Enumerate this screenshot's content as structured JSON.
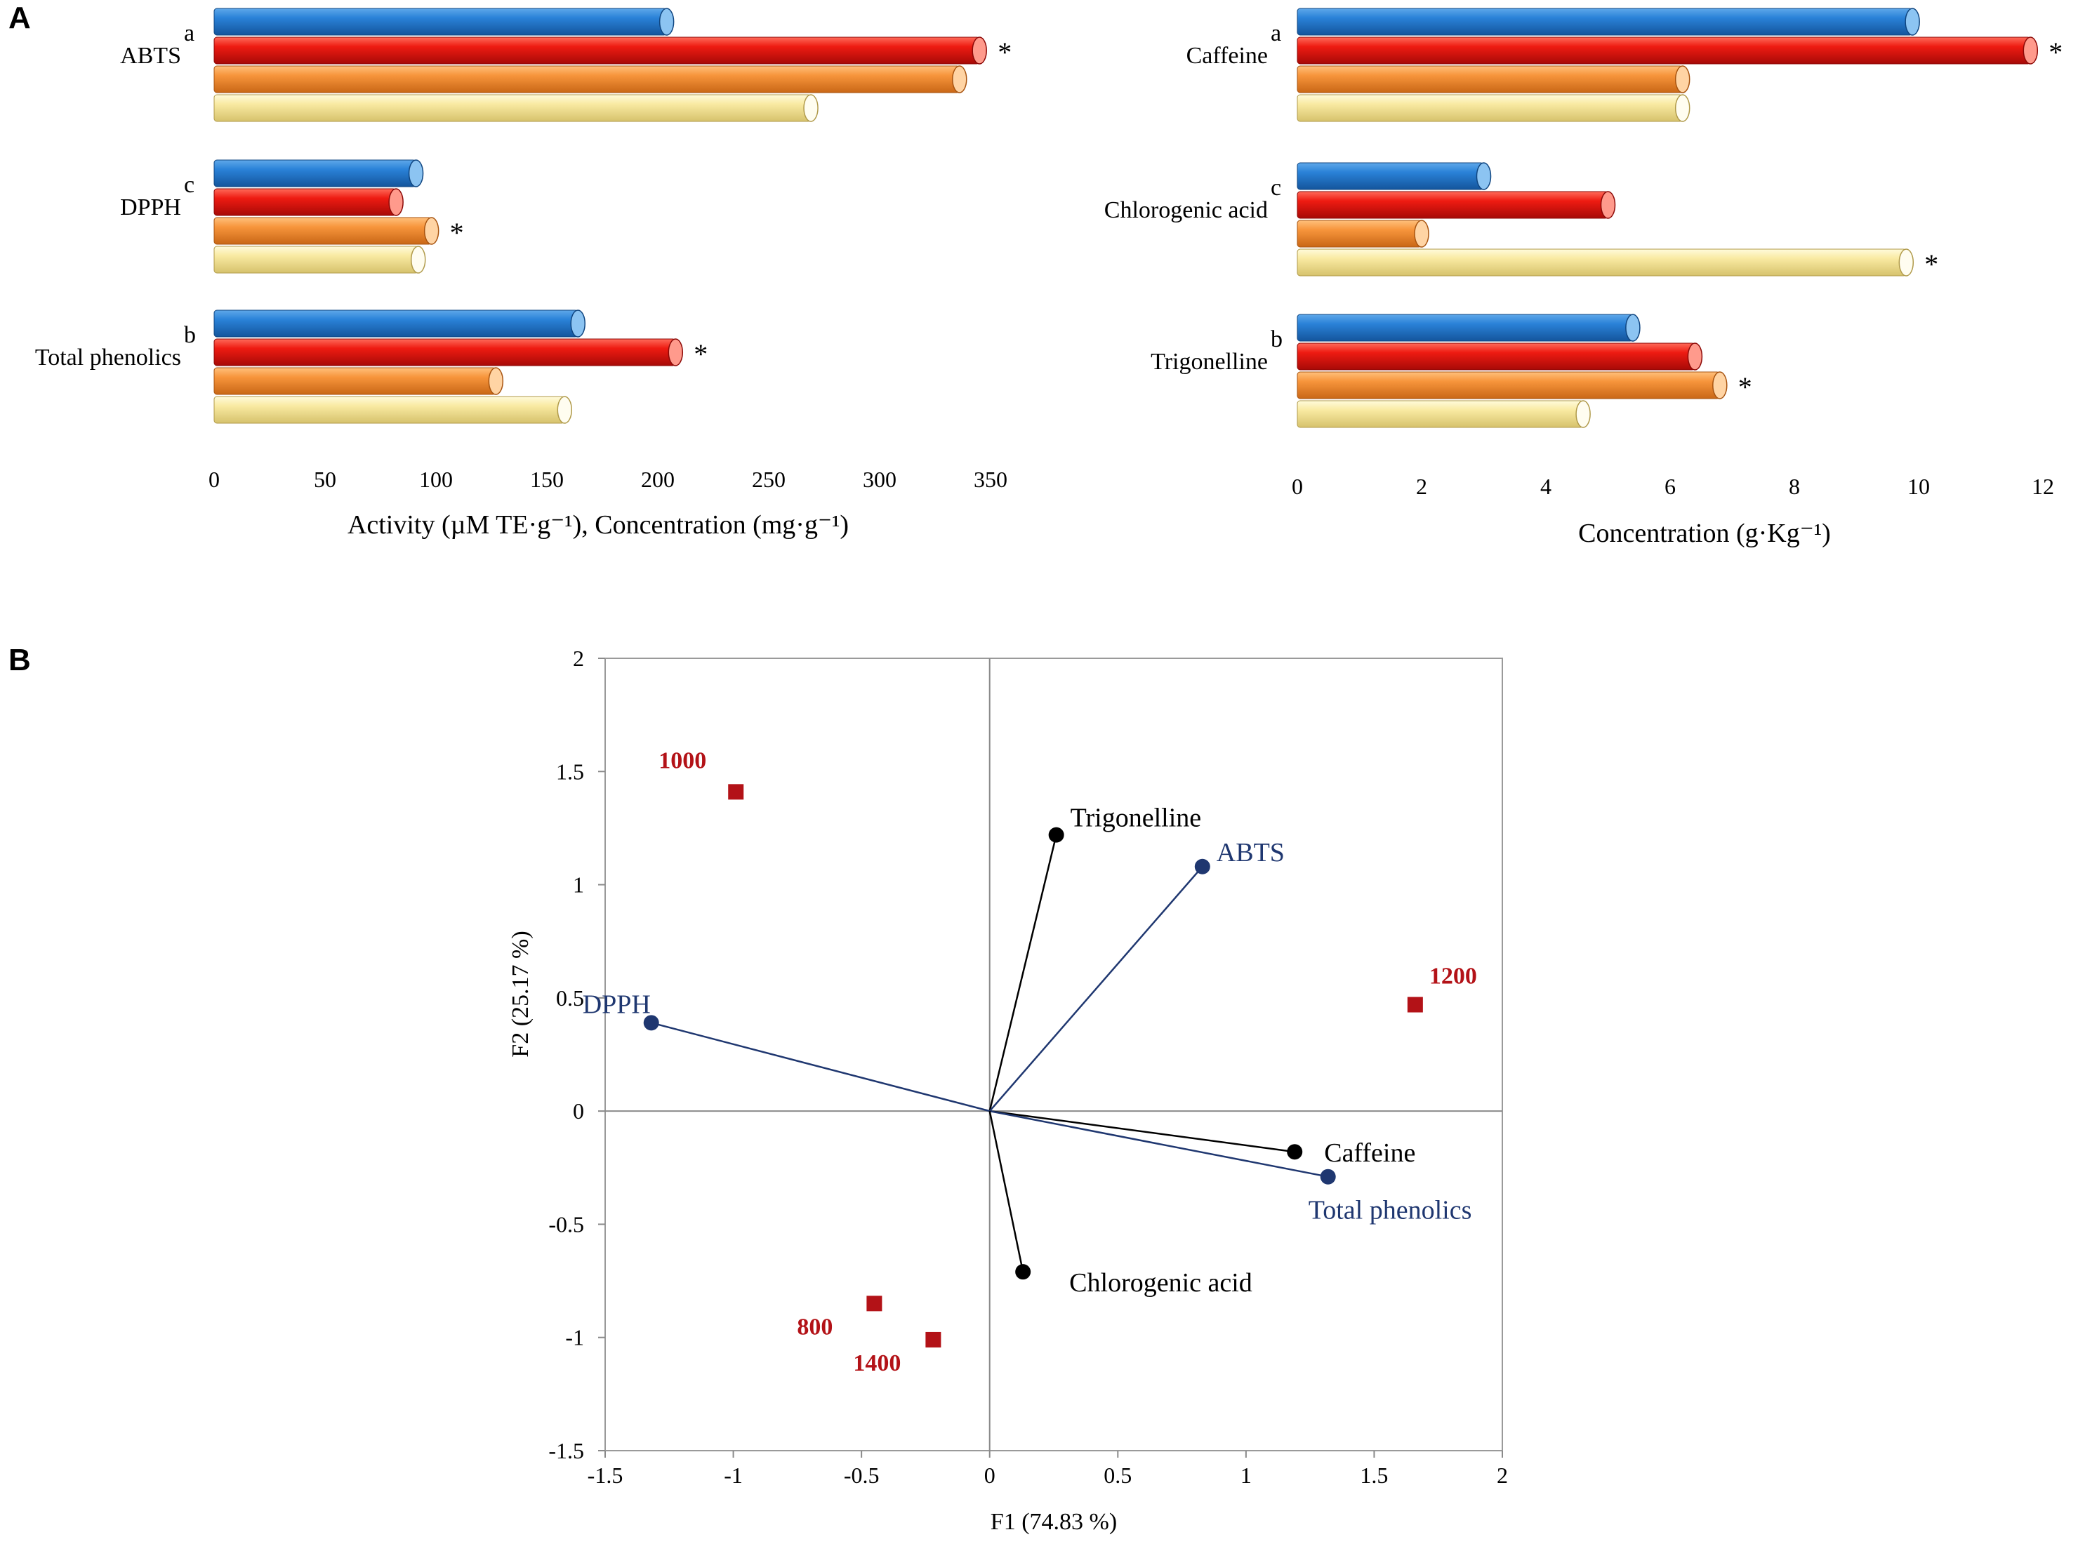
{
  "panels": {
    "a_label": "A",
    "b_label": "B"
  },
  "colors": {
    "series_blue": "#1f6fc4",
    "series_red": "#e8130f",
    "series_orange": "#f5903a",
    "series_yellow": "#f8e79a",
    "variable_color": "#1f3770",
    "observation_color": "#b31217",
    "line_black": "#000000"
  },
  "chart_data": [
    {
      "id": "A-left",
      "type": "bar",
      "orientation": "horizontal",
      "categories": [
        "ABTS",
        "DPPH",
        "Total phenolics"
      ],
      "letters": [
        "a",
        "c",
        "b"
      ],
      "series": [
        {
          "name": "series 1",
          "color_key": "series_blue",
          "values": [
            204,
            91,
            164
          ]
        },
        {
          "name": "series 2",
          "color_key": "series_red",
          "values": [
            345,
            82,
            208
          ]
        },
        {
          "name": "series 3",
          "color_key": "series_orange",
          "values": [
            336,
            98,
            127
          ]
        },
        {
          "name": "series 4",
          "color_key": "series_yellow",
          "values": [
            269,
            92,
            158
          ]
        }
      ],
      "asterisk_series": [
        1,
        2,
        1
      ],
      "xlim": [
        0,
        350
      ],
      "xticks": [
        0,
        50,
        100,
        150,
        200,
        250,
        300,
        350
      ],
      "xlabel": "Activity (µM TE·g⁻¹), Concentration (mg·g⁻¹)",
      "asterisk": "*"
    },
    {
      "id": "A-right",
      "type": "bar",
      "orientation": "horizontal",
      "categories": [
        "Caffeine",
        "Chlorogenic acid",
        "Trigonelline"
      ],
      "letters": [
        "a",
        "c",
        "b"
      ],
      "series": [
        {
          "name": "series 1",
          "color_key": "series_blue",
          "values": [
            9.9,
            3.0,
            5.4
          ]
        },
        {
          "name": "series 2",
          "color_key": "series_red",
          "values": [
            11.8,
            5.0,
            6.4
          ]
        },
        {
          "name": "series 3",
          "color_key": "series_orange",
          "values": [
            6.2,
            2.0,
            6.8
          ]
        },
        {
          "name": "series 4",
          "color_key": "series_yellow",
          "values": [
            6.2,
            9.8,
            4.6
          ]
        }
      ],
      "asterisk_series": [
        1,
        3,
        2
      ],
      "xlim": [
        0,
        12
      ],
      "xticks": [
        0,
        2,
        4,
        6,
        8,
        10,
        12
      ],
      "xlabel": "Concentration (g·Kg⁻¹)",
      "asterisk": "*"
    },
    {
      "id": "B",
      "type": "scatter",
      "subtype": "pca-biplot",
      "xlabel": "F1 (74.83  %)",
      "ylabel": "F2 (25.17  %)",
      "xlim": [
        -1.5,
        2
      ],
      "ylim": [
        -1.5,
        2
      ],
      "xticks": [
        "-1.5",
        "-1",
        "-0.5",
        "0",
        "0.5",
        "1",
        "1.5",
        "2"
      ],
      "yticks": [
        "-1.5",
        "-1",
        "-0.5",
        "0",
        "0.5",
        "1",
        "1.5",
        "2"
      ],
      "variables": [
        {
          "name": "Trigonelline",
          "x": 0.26,
          "y": 1.22,
          "color_key": "line_black"
        },
        {
          "name": "ABTS",
          "x": 0.83,
          "y": 1.08,
          "color_key": "variable_color"
        },
        {
          "name": "DPPH",
          "x": -1.32,
          "y": 0.39,
          "color_key": "variable_color"
        },
        {
          "name": "Caffeine",
          "x": 1.19,
          "y": -0.18,
          "color_key": "line_black"
        },
        {
          "name": "Total phenolics",
          "x": 1.32,
          "y": -0.29,
          "color_key": "variable_color"
        },
        {
          "name": "Chlorogenic  acid",
          "x": 0.13,
          "y": -0.71,
          "color_key": "line_black"
        }
      ],
      "observations": [
        {
          "name": "1000",
          "x": -0.99,
          "y": 1.41
        },
        {
          "name": "1200",
          "x": 1.66,
          "y": 0.47
        },
        {
          "name": "800",
          "x": -0.45,
          "y": -0.85
        },
        {
          "name": "1400",
          "x": -0.22,
          "y": -1.01
        }
      ]
    }
  ]
}
